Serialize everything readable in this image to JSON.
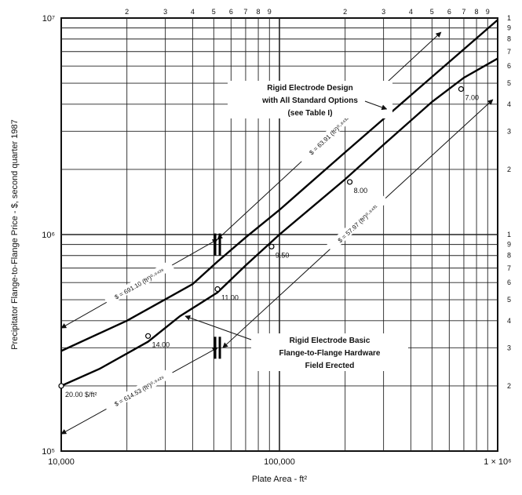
{
  "chart_data": {
    "type": "line",
    "title": "",
    "xlabel": "Plate Area - ft²",
    "ylabel": "Precipitator Flange-to-Flange Price - $, second quarter 1987",
    "x_scale": "log",
    "y_scale": "log",
    "xlim": [
      10000,
      1000000
    ],
    "ylim": [
      100000,
      10000000
    ],
    "grid": true,
    "x_tick_labels": [
      {
        "value": 10000,
        "label": "10,000"
      },
      {
        "value": 100000,
        "label": "100,000"
      },
      {
        "value": 1000000,
        "label": "1 × 10⁶"
      }
    ],
    "y_tick_labels": [
      {
        "value": 100000,
        "label": "10⁵"
      },
      {
        "value": 1000000,
        "label": "10⁶"
      },
      {
        "value": 10000000,
        "label": "10⁷"
      }
    ],
    "cycle_labels": [
      "1",
      "2",
      "3",
      "4",
      "5",
      "6",
      "7",
      "8",
      "9",
      "1"
    ],
    "series": [
      {
        "name": "Rigid Electrode Design with All Standard Options",
        "x": [
          10000,
          20000,
          40000,
          52000,
          70000,
          100000,
          200000,
          400000,
          1000000
        ],
        "y": [
          290000,
          400000,
          590000,
          750000,
          970000,
          1300000,
          2400000,
          4400000,
          9800000
        ]
      },
      {
        "name": "Rigid Electrode Basic Flange-to-Flange Hardware Field Erected",
        "x": [
          10000,
          15000,
          25000,
          35000,
          52000,
          70000,
          100000,
          200000,
          300000,
          500000,
          700000,
          1000000
        ],
        "y": [
          200000,
          240000,
          320000,
          420000,
          540000,
          720000,
          1000000,
          1800000,
          2600000,
          4100000,
          5300000,
          6500000
        ]
      }
    ],
    "price_per_area_points": [
      {
        "x": 10000,
        "y": 200000,
        "label": "20.00 $/ft²"
      },
      {
        "x": 25000,
        "y": 340000,
        "label": "14.00"
      },
      {
        "x": 52000,
        "y": 560000,
        "label": "11.00"
      },
      {
        "x": 92000,
        "y": 880000,
        "label": "9.50"
      },
      {
        "x": 210000,
        "y": 1750000,
        "label": "8.00"
      },
      {
        "x": 680000,
        "y": 4700000,
        "label": "7.00"
      }
    ],
    "regression_lines": [
      {
        "label": "$ = 691.10 (ft²)⁰·⁶⁴²⁹",
        "from": [
          10000,
          370000
        ],
        "to": [
          52000,
          950000
        ]
      },
      {
        "label": "$ = 63.91 (ft²)⁰·⁸⁴³¹",
        "from": [
          52000,
          950000
        ],
        "to": [
          550000,
          8600000
        ]
      },
      {
        "label": "$ = 614.53 (ft²)⁰·⁶⁴²⁹",
        "from": [
          10000,
          120000
        ],
        "to": [
          52000,
          300000
        ]
      },
      {
        "label": "$ = 57.97 (ft²)⁰·⁸⁴³¹",
        "from": [
          55000,
          300000
        ],
        "to": [
          950000,
          4200000
        ]
      }
    ],
    "annotations": [
      {
        "lines": [
          "Rigid Electrode Design",
          "with All Standard Options",
          "(see Table I)"
        ]
      },
      {
        "lines": [
          "Rigid Electrode Basic",
          "Flange-to-Flange Hardware",
          "Field Erected"
        ]
      }
    ]
  }
}
